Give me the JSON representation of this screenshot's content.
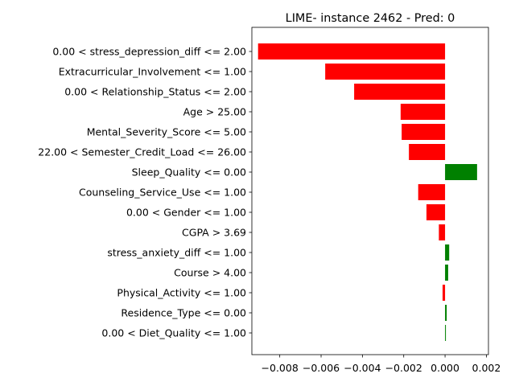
{
  "chart_data": {
    "type": "bar",
    "orientation": "horizontal",
    "title": "LIME- instance 2462 - Pred: 0",
    "xlabel": "",
    "ylabel": "",
    "xlim": [
      -0.00935,
      0.0021
    ],
    "xticks": [
      -0.008,
      -0.006,
      -0.004,
      -0.002,
      0.0,
      0.002
    ],
    "xtick_labels": [
      "−0.008",
      "−0.006",
      "−0.004",
      "−0.002",
      "0.000",
      "0.002"
    ],
    "categories": [
      "0.00 < stress_depression_diff <= 2.00",
      "Extracurricular_Involvement <= 1.00",
      "0.00 < Relationship_Status <= 2.00",
      "Age > 25.00",
      "Mental_Severity_Score <= 5.00",
      "22.00 < Semester_Credit_Load <= 26.00",
      "Sleep_Quality <= 0.00",
      "Counseling_Service_Use <= 1.00",
      "0.00 < Gender <= 1.00",
      "CGPA > 3.69",
      "stress_anxiety_diff <= 1.00",
      "Course > 4.00",
      "Physical_Activity <= 1.00",
      "Residence_Type <= 0.00",
      "0.00 < Diet_Quality <= 1.00"
    ],
    "values": [
      -0.00905,
      -0.0058,
      -0.0044,
      -0.00215,
      -0.0021,
      -0.00175,
      0.00155,
      -0.0013,
      -0.0009,
      -0.0003,
      0.0002,
      0.00015,
      -0.00012,
      8e-05,
      4e-05
    ],
    "colors": {
      "positive": "#008000",
      "negative": "#ff0000",
      "axis": "#000000",
      "background": "#ffffff"
    },
    "grid": false,
    "legend": "none"
  }
}
